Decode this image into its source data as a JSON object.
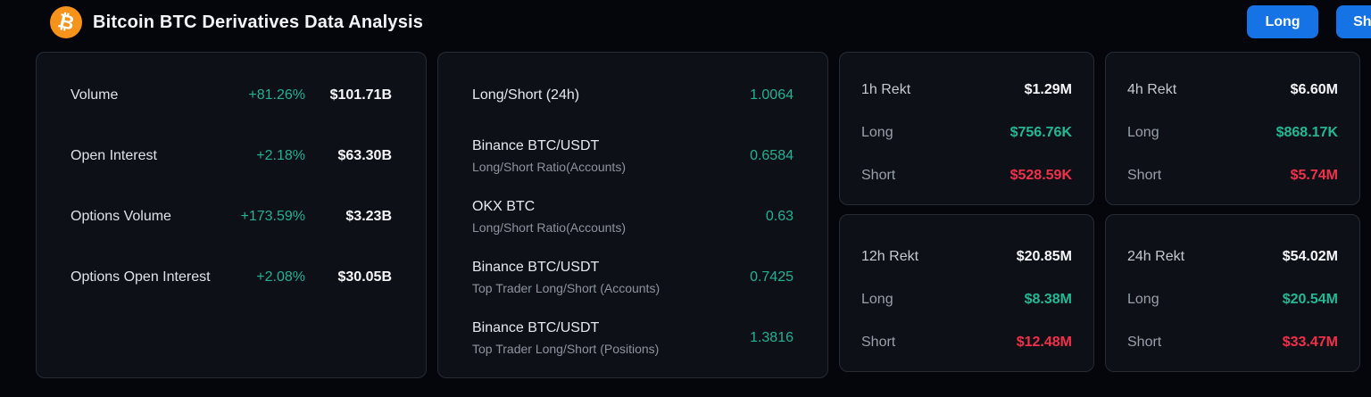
{
  "header": {
    "title": "Bitcoin BTC Derivatives Data Analysis",
    "buttons": [
      {
        "label": "Long"
      },
      {
        "label": "Short"
      }
    ]
  },
  "icons": {
    "bitcoin_glyph": "₿"
  },
  "colors": {
    "background": "#04060c",
    "card_background": "#0e1017",
    "card_border": "#272b34",
    "accent_green": "#20b295",
    "accent_red": "#f1304a",
    "button_blue": "#1673e6",
    "bitcoin_orange": "#f7931a"
  },
  "market_stats": {
    "rows": [
      {
        "label": "Volume",
        "change": "+81.26%",
        "value": "$101.71B"
      },
      {
        "label": "Open Interest",
        "change": "+2.18%",
        "value": "$63.30B"
      },
      {
        "label": "Options Volume",
        "change": "+173.59%",
        "value": "$3.23B"
      },
      {
        "label": "Options Open Interest",
        "change": "+2.08%",
        "value": "$30.05B"
      }
    ]
  },
  "long_short": {
    "rows": [
      {
        "title": "Long/Short (24h)",
        "subtitle": "",
        "value": "1.0064"
      },
      {
        "title": "Binance BTC/USDT",
        "subtitle": "Long/Short Ratio(Accounts)",
        "value": "0.6584"
      },
      {
        "title": "OKX BTC",
        "subtitle": "Long/Short Ratio(Accounts)",
        "value": "0.63"
      },
      {
        "title": "Binance BTC/USDT",
        "subtitle": "Top Trader Long/Short (Accounts)",
        "value": "0.7425"
      },
      {
        "title": "Binance BTC/USDT",
        "subtitle": "Top Trader Long/Short (Positions)",
        "value": "1.3816"
      }
    ]
  },
  "rekt_columns": [
    {
      "cards": [
        {
          "period": "1h Rekt",
          "total": "$1.29M",
          "long_label": "Long",
          "long_value": "$756.76K",
          "short_label": "Short",
          "short_value": "$528.59K"
        },
        {
          "period": "12h Rekt",
          "total": "$20.85M",
          "long_label": "Long",
          "long_value": "$8.38M",
          "short_label": "Short",
          "short_value": "$12.48M"
        }
      ]
    },
    {
      "cards": [
        {
          "period": "4h Rekt",
          "total": "$6.60M",
          "long_label": "Long",
          "long_value": "$868.17K",
          "short_label": "Short",
          "short_value": "$5.74M"
        },
        {
          "period": "24h Rekt",
          "total": "$54.02M",
          "long_label": "Long",
          "long_value": "$20.54M",
          "short_label": "Short",
          "short_value": "$33.47M"
        }
      ]
    }
  ]
}
